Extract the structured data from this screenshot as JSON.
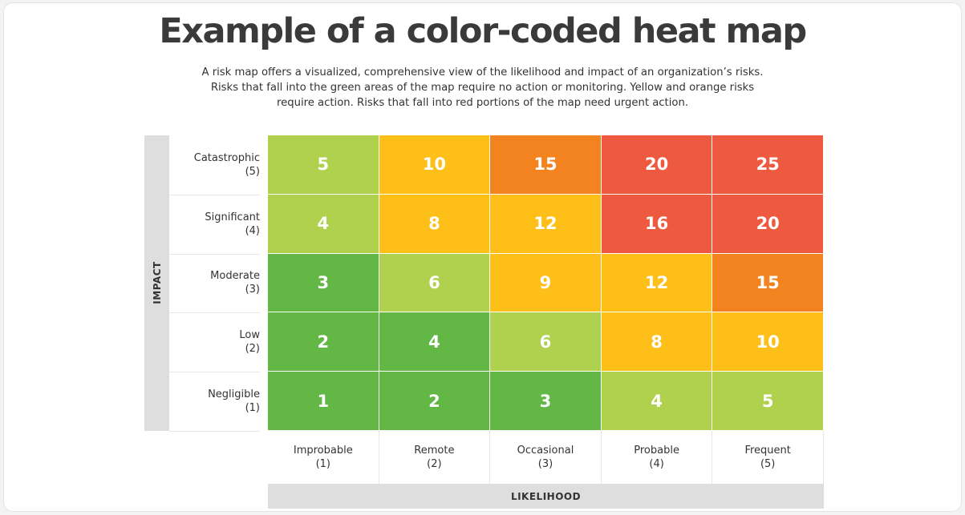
{
  "header": {
    "title": "Example of a color-coded heat map",
    "subtitle_lines": [
      "A risk map offers a visualized, comprehensive view of the likelihood and impact of an organization’s risks.",
      "Risks that fall into the green areas of the map require no action or monitoring. Yellow and orange risks",
      "require action. Risks that fall into red portions of the map need urgent action."
    ]
  },
  "chart_data": {
    "type": "heatmap",
    "title": "Example of a color-coded heat map",
    "ylabel": "IMPACT",
    "xlabel": "LIKELIHOOD",
    "rows": [
      {
        "label": "Catastrophic",
        "score": "(5)",
        "values": [
          5,
          10,
          15,
          20,
          25
        ],
        "colors": [
          "#b0d14e",
          "#fdbf18",
          "#f3831f",
          "#ee5a3f",
          "#ee5a3f"
        ]
      },
      {
        "label": "Significant",
        "score": "(4)",
        "values": [
          4,
          8,
          12,
          16,
          20
        ],
        "colors": [
          "#b0d14e",
          "#fdbf18",
          "#fdbf18",
          "#ee5a3f",
          "#ee5a3f"
        ]
      },
      {
        "label": "Moderate",
        "score": "(3)",
        "values": [
          3,
          6,
          9,
          12,
          15
        ],
        "colors": [
          "#62b745",
          "#b0d14e",
          "#fdbf18",
          "#fdbf18",
          "#f3831f"
        ]
      },
      {
        "label": "Low",
        "score": "(2)",
        "values": [
          2,
          4,
          6,
          8,
          10
        ],
        "colors": [
          "#62b745",
          "#62b745",
          "#b0d14e",
          "#fdbf18",
          "#fdbf18"
        ]
      },
      {
        "label": "Negligible",
        "score": "(1)",
        "values": [
          1,
          2,
          3,
          4,
          5
        ],
        "colors": [
          "#62b745",
          "#62b745",
          "#62b745",
          "#b0d14e",
          "#b0d14e"
        ]
      }
    ],
    "columns": [
      {
        "label": "Improbable",
        "score": "(1)"
      },
      {
        "label": "Remote",
        "score": "(2)"
      },
      {
        "label": "Occasional",
        "score": "(3)"
      },
      {
        "label": "Probable",
        "score": "(4)"
      },
      {
        "label": "Frequent",
        "score": "(5)"
      }
    ]
  }
}
